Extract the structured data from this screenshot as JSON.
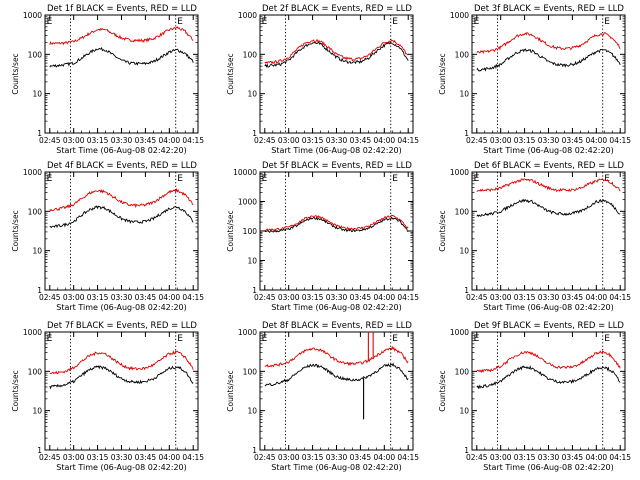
{
  "figure": {
    "xlabel": "Start Time (06-Aug-08 02:42:20)",
    "ylabel": "Counts/sec",
    "x_tick_labels": [
      "02:45",
      "03:00",
      "03:15",
      "03:30",
      "03:45",
      "04:00",
      "04:15"
    ],
    "y_tick_labels": [
      "1",
      "10",
      "100",
      "1000"
    ],
    "marker_letter": "E",
    "colors": {
      "events": "#000000",
      "lld": "#e00000",
      "axes": "#000000"
    }
  },
  "chart_data": [
    {
      "type": "line",
      "title": "Det 1f BLACK = Events, RED = LLD",
      "xlabel": "Start Time (06-Aug-08 02:42:20)",
      "ylabel": "Counts/sec",
      "y_scale": "log",
      "ylim": [
        1,
        1000
      ],
      "x": [
        "02:45",
        "02:50",
        "02:55",
        "03:00",
        "03:05",
        "03:10",
        "03:15",
        "03:20",
        "03:25",
        "03:30",
        "03:35",
        "03:40",
        "03:45",
        "03:50",
        "03:55",
        "04:00",
        "04:05",
        "04:10",
        "04:15"
      ],
      "series": [
        {
          "name": "LLD",
          "color": "#e00000",
          "values": [
            190,
            190,
            195,
            210,
            260,
            340,
            430,
            420,
            330,
            260,
            230,
            225,
            225,
            250,
            320,
            420,
            480,
            380,
            230
          ]
        },
        {
          "name": "Events",
          "color": "#000000",
          "values": [
            50,
            52,
            55,
            60,
            80,
            110,
            140,
            130,
            95,
            70,
            60,
            58,
            58,
            65,
            85,
            115,
            130,
            105,
            65
          ]
        }
      ],
      "dotted_lines": [
        "02:58",
        "04:04"
      ],
      "marker_labels": [
        {
          "x": "02:43",
          "text": "E"
        },
        {
          "x": "04:05",
          "text": "E"
        }
      ]
    },
    {
      "type": "line",
      "title": "Det 2f BLACK = Events, RED = LLD",
      "xlabel": "Start Time (06-Aug-08 02:42:20)",
      "ylabel": "Counts/sec",
      "y_scale": "log",
      "ylim": [
        1,
        1000
      ],
      "x": [
        "02:45",
        "02:50",
        "02:55",
        "03:00",
        "03:05",
        "03:10",
        "03:15",
        "03:20",
        "03:25",
        "03:30",
        "03:35",
        "03:40",
        "03:45",
        "03:50",
        "03:55",
        "04:00",
        "04:05",
        "04:10",
        "04:15"
      ],
      "series": [
        {
          "name": "LLD",
          "color": "#e00000",
          "values": [
            60,
            62,
            68,
            85,
            130,
            190,
            230,
            210,
            150,
            100,
            80,
            75,
            78,
            95,
            140,
            200,
            230,
            170,
            90
          ]
        },
        {
          "name": "Events",
          "color": "#000000",
          "values": [
            50,
            52,
            56,
            70,
            110,
            160,
            200,
            180,
            125,
            85,
            66,
            62,
            64,
            80,
            120,
            170,
            200,
            145,
            70
          ]
        }
      ],
      "dotted_lines": [
        "02:58",
        "04:04"
      ],
      "marker_labels": [
        {
          "x": "02:43",
          "text": "E"
        },
        {
          "x": "04:05",
          "text": "E"
        }
      ]
    },
    {
      "type": "line",
      "title": "Det 3f BLACK = Events, RED = LLD",
      "xlabel": "Start Time (06-Aug-08 02:42:20)",
      "ylabel": "Counts/sec",
      "y_scale": "log",
      "ylim": [
        1,
        1000
      ],
      "x": [
        "02:45",
        "02:50",
        "02:55",
        "03:00",
        "03:05",
        "03:10",
        "03:15",
        "03:20",
        "03:25",
        "03:30",
        "03:35",
        "03:40",
        "03:45",
        "03:50",
        "03:55",
        "04:00",
        "04:05",
        "04:10",
        "04:15"
      ],
      "series": [
        {
          "name": "LLD",
          "color": "#e00000",
          "values": [
            110,
            115,
            125,
            150,
            210,
            290,
            340,
            310,
            230,
            170,
            145,
            140,
            145,
            170,
            230,
            310,
            340,
            260,
            150
          ]
        },
        {
          "name": "Events",
          "color": "#000000",
          "values": [
            40,
            42,
            46,
            55,
            80,
            110,
            130,
            120,
            88,
            65,
            55,
            53,
            55,
            65,
            88,
            118,
            130,
            100,
            58
          ]
        }
      ],
      "dotted_lines": [
        "02:58",
        "04:04"
      ],
      "marker_labels": [
        {
          "x": "02:43",
          "text": "E"
        },
        {
          "x": "04:05",
          "text": "E"
        }
      ]
    },
    {
      "type": "line",
      "title": "Det 4f BLACK = Events, RED = LLD",
      "xlabel": "Start Time (06-Aug-08 02:42:20)",
      "ylabel": "Counts/sec",
      "y_scale": "log",
      "ylim": [
        1,
        1000
      ],
      "x": [
        "02:45",
        "02:50",
        "02:55",
        "03:00",
        "03:05",
        "03:10",
        "03:15",
        "03:20",
        "03:25",
        "03:30",
        "03:35",
        "03:40",
        "03:45",
        "03:50",
        "03:55",
        "04:00",
        "04:05",
        "04:10",
        "04:15"
      ],
      "series": [
        {
          "name": "LLD",
          "color": "#e00000",
          "values": [
            110,
            115,
            125,
            150,
            210,
            290,
            340,
            310,
            230,
            170,
            145,
            140,
            145,
            170,
            230,
            310,
            340,
            260,
            150
          ]
        },
        {
          "name": "Events",
          "color": "#000000",
          "values": [
            40,
            42,
            46,
            55,
            80,
            110,
            130,
            120,
            88,
            65,
            55,
            53,
            55,
            65,
            88,
            118,
            130,
            100,
            55
          ]
        }
      ],
      "dotted_lines": [
        "02:58",
        "04:04"
      ],
      "marker_labels": [
        {
          "x": "02:43",
          "text": "E"
        },
        {
          "x": "04:05",
          "text": "E"
        }
      ]
    },
    {
      "type": "line",
      "title": "Det 5f BLACK = Events, RED = LLD",
      "xlabel": "Start Time (06-Aug-08 02:42:20)",
      "ylabel": "Counts/sec",
      "y_scale": "log",
      "ylim": [
        1,
        10000
      ],
      "x": [
        "02:45",
        "02:50",
        "02:55",
        "03:00",
        "03:05",
        "03:10",
        "03:15",
        "03:20",
        "03:25",
        "03:30",
        "03:35",
        "03:40",
        "03:45",
        "03:50",
        "03:55",
        "04:00",
        "04:05",
        "04:10",
        "04:15"
      ],
      "series": [
        {
          "name": "LLD",
          "color": "#e00000",
          "values": [
            110,
            112,
            118,
            135,
            180,
            260,
            330,
            300,
            210,
            150,
            125,
            120,
            125,
            145,
            200,
            280,
            330,
            240,
            120
          ]
        },
        {
          "name": "Events",
          "color": "#000000",
          "values": [
            95,
            97,
            102,
            115,
            150,
            220,
            280,
            255,
            180,
            128,
            106,
            102,
            106,
            124,
            170,
            240,
            280,
            205,
            100
          ]
        }
      ],
      "dotted_lines": [
        "02:58",
        "04:04"
      ],
      "marker_labels": [
        {
          "x": "02:43",
          "text": "E"
        },
        {
          "x": "04:05",
          "text": "E"
        }
      ]
    },
    {
      "type": "line",
      "title": "Det 6f BLACK = Events, RED = LLD",
      "xlabel": "Start Time (06-Aug-08 02:42:20)",
      "ylabel": "Counts/sec",
      "y_scale": "log",
      "ylim": [
        1,
        1000
      ],
      "x": [
        "02:45",
        "02:50",
        "02:55",
        "03:00",
        "03:05",
        "03:10",
        "03:15",
        "03:20",
        "03:25",
        "03:30",
        "03:35",
        "03:40",
        "03:45",
        "03:50",
        "03:55",
        "04:00",
        "04:05",
        "04:10",
        "04:15"
      ],
      "series": [
        {
          "name": "LLD",
          "color": "#e00000",
          "values": [
            340,
            345,
            355,
            390,
            480,
            580,
            640,
            600,
            480,
            390,
            350,
            345,
            350,
            390,
            480,
            590,
            650,
            520,
            340
          ]
        },
        {
          "name": "Events",
          "color": "#000000",
          "values": [
            80,
            82,
            88,
            100,
            130,
            170,
            190,
            175,
            130,
            100,
            88,
            85,
            88,
            100,
            130,
            175,
            190,
            145,
            85
          ]
        }
      ],
      "dotted_lines": [
        "02:58",
        "04:04"
      ],
      "marker_labels": [
        {
          "x": "02:43",
          "text": "E"
        },
        {
          "x": "04:05",
          "text": "E"
        }
      ]
    },
    {
      "type": "line",
      "title": "Det 7f BLACK = Events, RED = LLD",
      "xlabel": "Start Time (06-Aug-08 02:42:20)",
      "ylabel": "Counts/sec",
      "y_scale": "log",
      "ylim": [
        1,
        1000
      ],
      "x": [
        "02:45",
        "02:50",
        "02:55",
        "03:00",
        "03:05",
        "03:10",
        "03:15",
        "03:20",
        "03:25",
        "03:30",
        "03:35",
        "03:40",
        "03:45",
        "03:50",
        "03:55",
        "04:00",
        "04:05",
        "04:10",
        "04:15"
      ],
      "series": [
        {
          "name": "LLD",
          "color": "#e00000",
          "values": [
            90,
            92,
            100,
            125,
            180,
            250,
            300,
            280,
            200,
            145,
            120,
            115,
            120,
            145,
            200,
            280,
            310,
            230,
            115
          ]
        },
        {
          "name": "Events",
          "color": "#000000",
          "values": [
            40,
            42,
            46,
            55,
            80,
            110,
            130,
            120,
            88,
            65,
            55,
            53,
            55,
            65,
            88,
            118,
            130,
            100,
            50
          ]
        }
      ],
      "dotted_lines": [
        "02:58",
        "04:04"
      ],
      "marker_labels": [
        {
          "x": "02:43",
          "text": "E"
        },
        {
          "x": "04:05",
          "text": "E"
        }
      ]
    },
    {
      "type": "line",
      "title": "Det 8f BLACK = Events, RED = LLD",
      "xlabel": "Start Time (06-Aug-08 02:42:20)",
      "ylabel": "Counts/sec",
      "y_scale": "log",
      "ylim": [
        1,
        1000
      ],
      "x": [
        "02:45",
        "02:50",
        "02:55",
        "03:00",
        "03:05",
        "03:10",
        "03:15",
        "03:20",
        "03:25",
        "03:30",
        "03:35",
        "03:40",
        "03:45",
        "03:50",
        "03:55",
        "04:00",
        "04:05",
        "04:10",
        "04:15"
      ],
      "series": [
        {
          "name": "LLD",
          "color": "#e00000",
          "values": [
            140,
            142,
            150,
            175,
            240,
            330,
            380,
            350,
            260,
            190,
            160,
            155,
            160,
            185,
            250,
            340,
            390,
            300,
            170
          ]
        },
        {
          "name": "Events",
          "color": "#000000",
          "values": [
            45,
            47,
            52,
            62,
            90,
            125,
            145,
            135,
            100,
            74,
            63,
            60,
            63,
            75,
            100,
            135,
            150,
            115,
            62
          ]
        }
      ],
      "spikes": [
        {
          "series": "LLD",
          "x": "03:50",
          "value": 1000
        },
        {
          "series": "LLD",
          "x": "03:53",
          "value": 1000
        },
        {
          "series": "Events",
          "x": "03:47",
          "value": 6
        }
      ],
      "dotted_lines": [
        "02:58",
        "04:04"
      ],
      "marker_labels": [
        {
          "x": "02:43",
          "text": "E"
        },
        {
          "x": "04:05",
          "text": "E"
        }
      ]
    },
    {
      "type": "line",
      "title": "Det 9f BLACK = Events, RED = LLD",
      "xlabel": "Start Time (06-Aug-08 02:42:20)",
      "ylabel": "Counts/sec",
      "y_scale": "log",
      "ylim": [
        1,
        1000
      ],
      "x": [
        "02:45",
        "02:50",
        "02:55",
        "03:00",
        "03:05",
        "03:10",
        "03:15",
        "03:20",
        "03:25",
        "03:30",
        "03:35",
        "03:40",
        "03:45",
        "03:50",
        "03:55",
        "04:00",
        "04:05",
        "04:10",
        "04:15"
      ],
      "series": [
        {
          "name": "LLD",
          "color": "#e00000",
          "values": [
            100,
            102,
            110,
            135,
            190,
            260,
            310,
            290,
            210,
            155,
            130,
            125,
            130,
            155,
            210,
            290,
            320,
            240,
            120
          ]
        },
        {
          "name": "Events",
          "color": "#000000",
          "values": [
            40,
            42,
            46,
            55,
            80,
            110,
            130,
            120,
            88,
            65,
            55,
            53,
            55,
            65,
            88,
            118,
            130,
            100,
            55
          ]
        }
      ],
      "dotted_lines": [
        "02:58",
        "04:04"
      ],
      "marker_labels": [
        {
          "x": "02:43",
          "text": "E"
        },
        {
          "x": "04:05",
          "text": "E"
        }
      ]
    }
  ]
}
